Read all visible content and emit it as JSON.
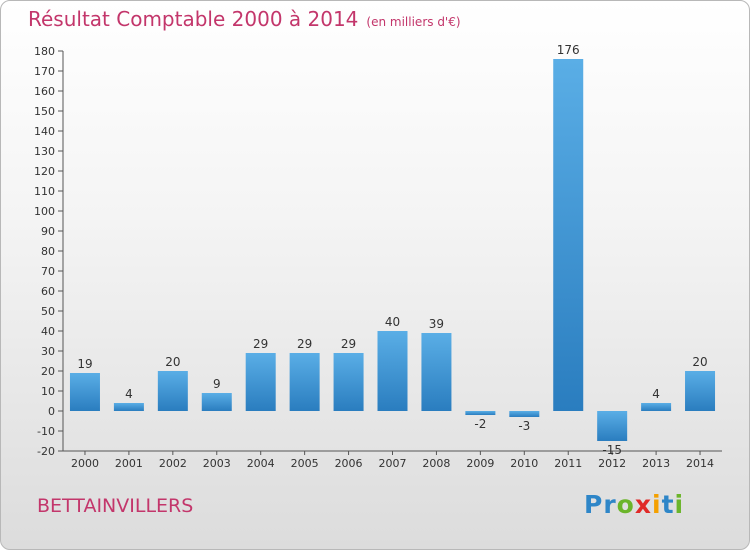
{
  "header": {
    "title": "Résultat Comptable 2000 à 2014",
    "unit": "(en milliers d'€)"
  },
  "footer": {
    "commune": "BETTAINVILLERS",
    "logo_letters": [
      {
        "ch": "P",
        "color": "#2e86c8"
      },
      {
        "ch": "r",
        "color": "#2e86c8"
      },
      {
        "ch": "o",
        "color": "#6bb52a"
      },
      {
        "ch": "x",
        "color": "#e02a28"
      },
      {
        "ch": "i",
        "color": "#f4a000"
      },
      {
        "ch": "t",
        "color": "#2e86c8"
      },
      {
        "ch": "i",
        "color": "#6bb52a"
      }
    ]
  },
  "chart_data": {
    "type": "bar",
    "categories": [
      "2000",
      "2001",
      "2002",
      "2003",
      "2004",
      "2005",
      "2006",
      "2007",
      "2008",
      "2009",
      "2010",
      "2011",
      "2012",
      "2013",
      "2014"
    ],
    "values": [
      19,
      4,
      20,
      9,
      29,
      29,
      29,
      40,
      39,
      -2,
      -3,
      176,
      -15,
      4,
      20
    ],
    "data_labels": [
      "19",
      "4",
      "20",
      "9",
      "29",
      "29",
      "29",
      "40",
      "39",
      "-2",
      "-3",
      "176",
      "-15",
      "4",
      "20"
    ],
    "ylim": [
      -20,
      180
    ],
    "ytick_step": 10,
    "grid": false,
    "colors": {
      "bar_light": "#5aaee6",
      "bar_dark": "#2a7dbf",
      "accent": "#c3366b"
    }
  }
}
